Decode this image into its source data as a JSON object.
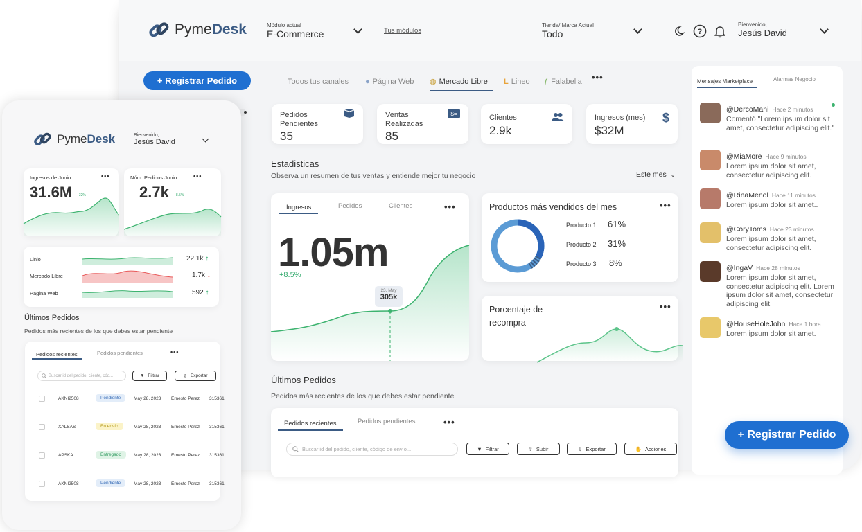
{
  "app": {
    "brand_a": "Pyme",
    "brand_b": "Desk"
  },
  "header": {
    "module_label": "Módulo actual",
    "module_value": "E-Commerce",
    "my_modules_link": "Tus módulos",
    "store_label": "Tienda/ Marca Actual",
    "store_value": "Todo",
    "welcome_label": "Bienvenido,",
    "user_name": "Jesús David"
  },
  "register_button": "+ Registrar Pedido",
  "channel_tabs": [
    "Todos tus canales",
    "Página Web",
    "Mercado Libre",
    "Lineo",
    "Falabella"
  ],
  "stats": [
    {
      "label": "Pedidos Pendientes",
      "value": "35",
      "icon": "box-icon"
    },
    {
      "label": "Ventas Realizadas",
      "value": "85",
      "icon": "cash-icon"
    },
    {
      "label": "Clientes",
      "value": "2.9k",
      "icon": "users-icon"
    },
    {
      "label": "Ingresos (mes)",
      "value": "$32M",
      "icon": "dollar-icon"
    }
  ],
  "statistics": {
    "title": "Estadisticas",
    "subtitle": "Observa un resumen de tus ventas y entiende mejor tu negocio",
    "period": "Este mes",
    "tabs": [
      "Ingresos",
      "Pedidos",
      "Clientes"
    ],
    "big_value": "1.05m",
    "change": "+8.5%",
    "tooltip_date": "23, May",
    "tooltip_value": "305k"
  },
  "top_products": {
    "title": "Productos más vendidos del mes",
    "items": [
      {
        "label": "Producto 1",
        "value": "61%"
      },
      {
        "label": "Producto 2",
        "value": "31%"
      },
      {
        "label": "Producto 3",
        "value": "8%"
      }
    ]
  },
  "repurchase": {
    "title": "Porcentaje de recompra"
  },
  "orders": {
    "title": "Últimos Pedidos",
    "subtitle": "Pedidos más recientes de los que debes estar pendiente",
    "tab_recent": "Pedidos recientes",
    "tab_pending": "Pedidos pendientes",
    "search_placeholder": "Buscar id del pedido, cliente, código de envío...",
    "btn_filter": "Filtrar",
    "btn_upload": "Subir",
    "btn_export": "Exportar",
    "btn_actions": "Acciones"
  },
  "messages": {
    "tab_marketplace": "Mensajes Marketplace",
    "tab_alarms": "Alarmas Negocio",
    "items": [
      {
        "user": "@DercoMani",
        "time": "Hace 2 minutos",
        "text": "Comentó \"Lorem ipsum dolor sit amet, consectetur adipiscing elit.\"",
        "color": "#8a6a5a"
      },
      {
        "user": "@MiaMore",
        "time": "Hace 9 minutos",
        "text": "Lorem ipsum dolor sit amet, consectetur adipiscing elit.",
        "color": "#c98a6a"
      },
      {
        "user": "@RinaMenol",
        "time": "Hace 11 minutos",
        "text": "Lorem ipsum dolor sit amet..",
        "color": "#b77a6a"
      },
      {
        "user": "@CoryToms",
        "time": "Hace 23 minutos",
        "text": "Lorem ipsum dolor sit amet, consectetur adipiscing elit.",
        "color": "#e3c06a"
      },
      {
        "user": "@IngaV",
        "time": "Hace 28 minutos",
        "text": "Lorem ipsum dolor sit amet, consectetur adipiscing elit. Lorem ipsum dolor sit amet, consectetur adipiscing elit.",
        "color": "#5a3a2a"
      },
      {
        "user": "@HouseHoleJohn",
        "time": "Hace 1 hora",
        "text": "Lorem ipsum dolor sit amet.",
        "color": "#e8c86a"
      }
    ]
  },
  "mobile": {
    "welcome_label": "Bienvenido,",
    "user_name": "Jesús David",
    "income_title": "Ingresos de Junio",
    "income_value": "31.6M",
    "income_change": "+32%",
    "orders_title": "Núm. Pedidos Junio",
    "orders_value": "2.7k",
    "orders_change": "+8.5%",
    "channels": [
      {
        "name": "Linio",
        "value": "22.1k",
        "trend": "↑"
      },
      {
        "name": "Mercado Libre",
        "value": "1.7k",
        "trend": "↓"
      },
      {
        "name": "Página Web",
        "value": "592",
        "trend": "↑"
      }
    ],
    "orders_title2": "Últimos Pedidos",
    "orders_subtitle": "Pedidos más recientes de los que debes estar pendiente",
    "tab_recent": "Pedidos recientes",
    "tab_pending": "Pedidos pendientes",
    "search_placeholder": "Buscar id del pedido, cliente, cód...",
    "btn_filter": "Filtrar",
    "btn_export": "Exportar",
    "rows": [
      {
        "id": "AKNI2508",
        "status": "Pendiente",
        "date": "May 28, 2023",
        "client": "Ernesto Perez",
        "code": "315361"
      },
      {
        "id": "XALSAS",
        "status": "En envío",
        "date": "May 28, 2023",
        "client": "Ernesto Perez",
        "code": "315361"
      },
      {
        "id": "APSKA",
        "status": "Entregado",
        "date": "May 28, 2023",
        "client": "Ernesto Perez",
        "code": "315361"
      },
      {
        "id": "AKNI2508",
        "status": "Pendiente",
        "date": "May 28, 2023",
        "client": "Ernesto Perez",
        "code": "315361"
      }
    ]
  }
}
